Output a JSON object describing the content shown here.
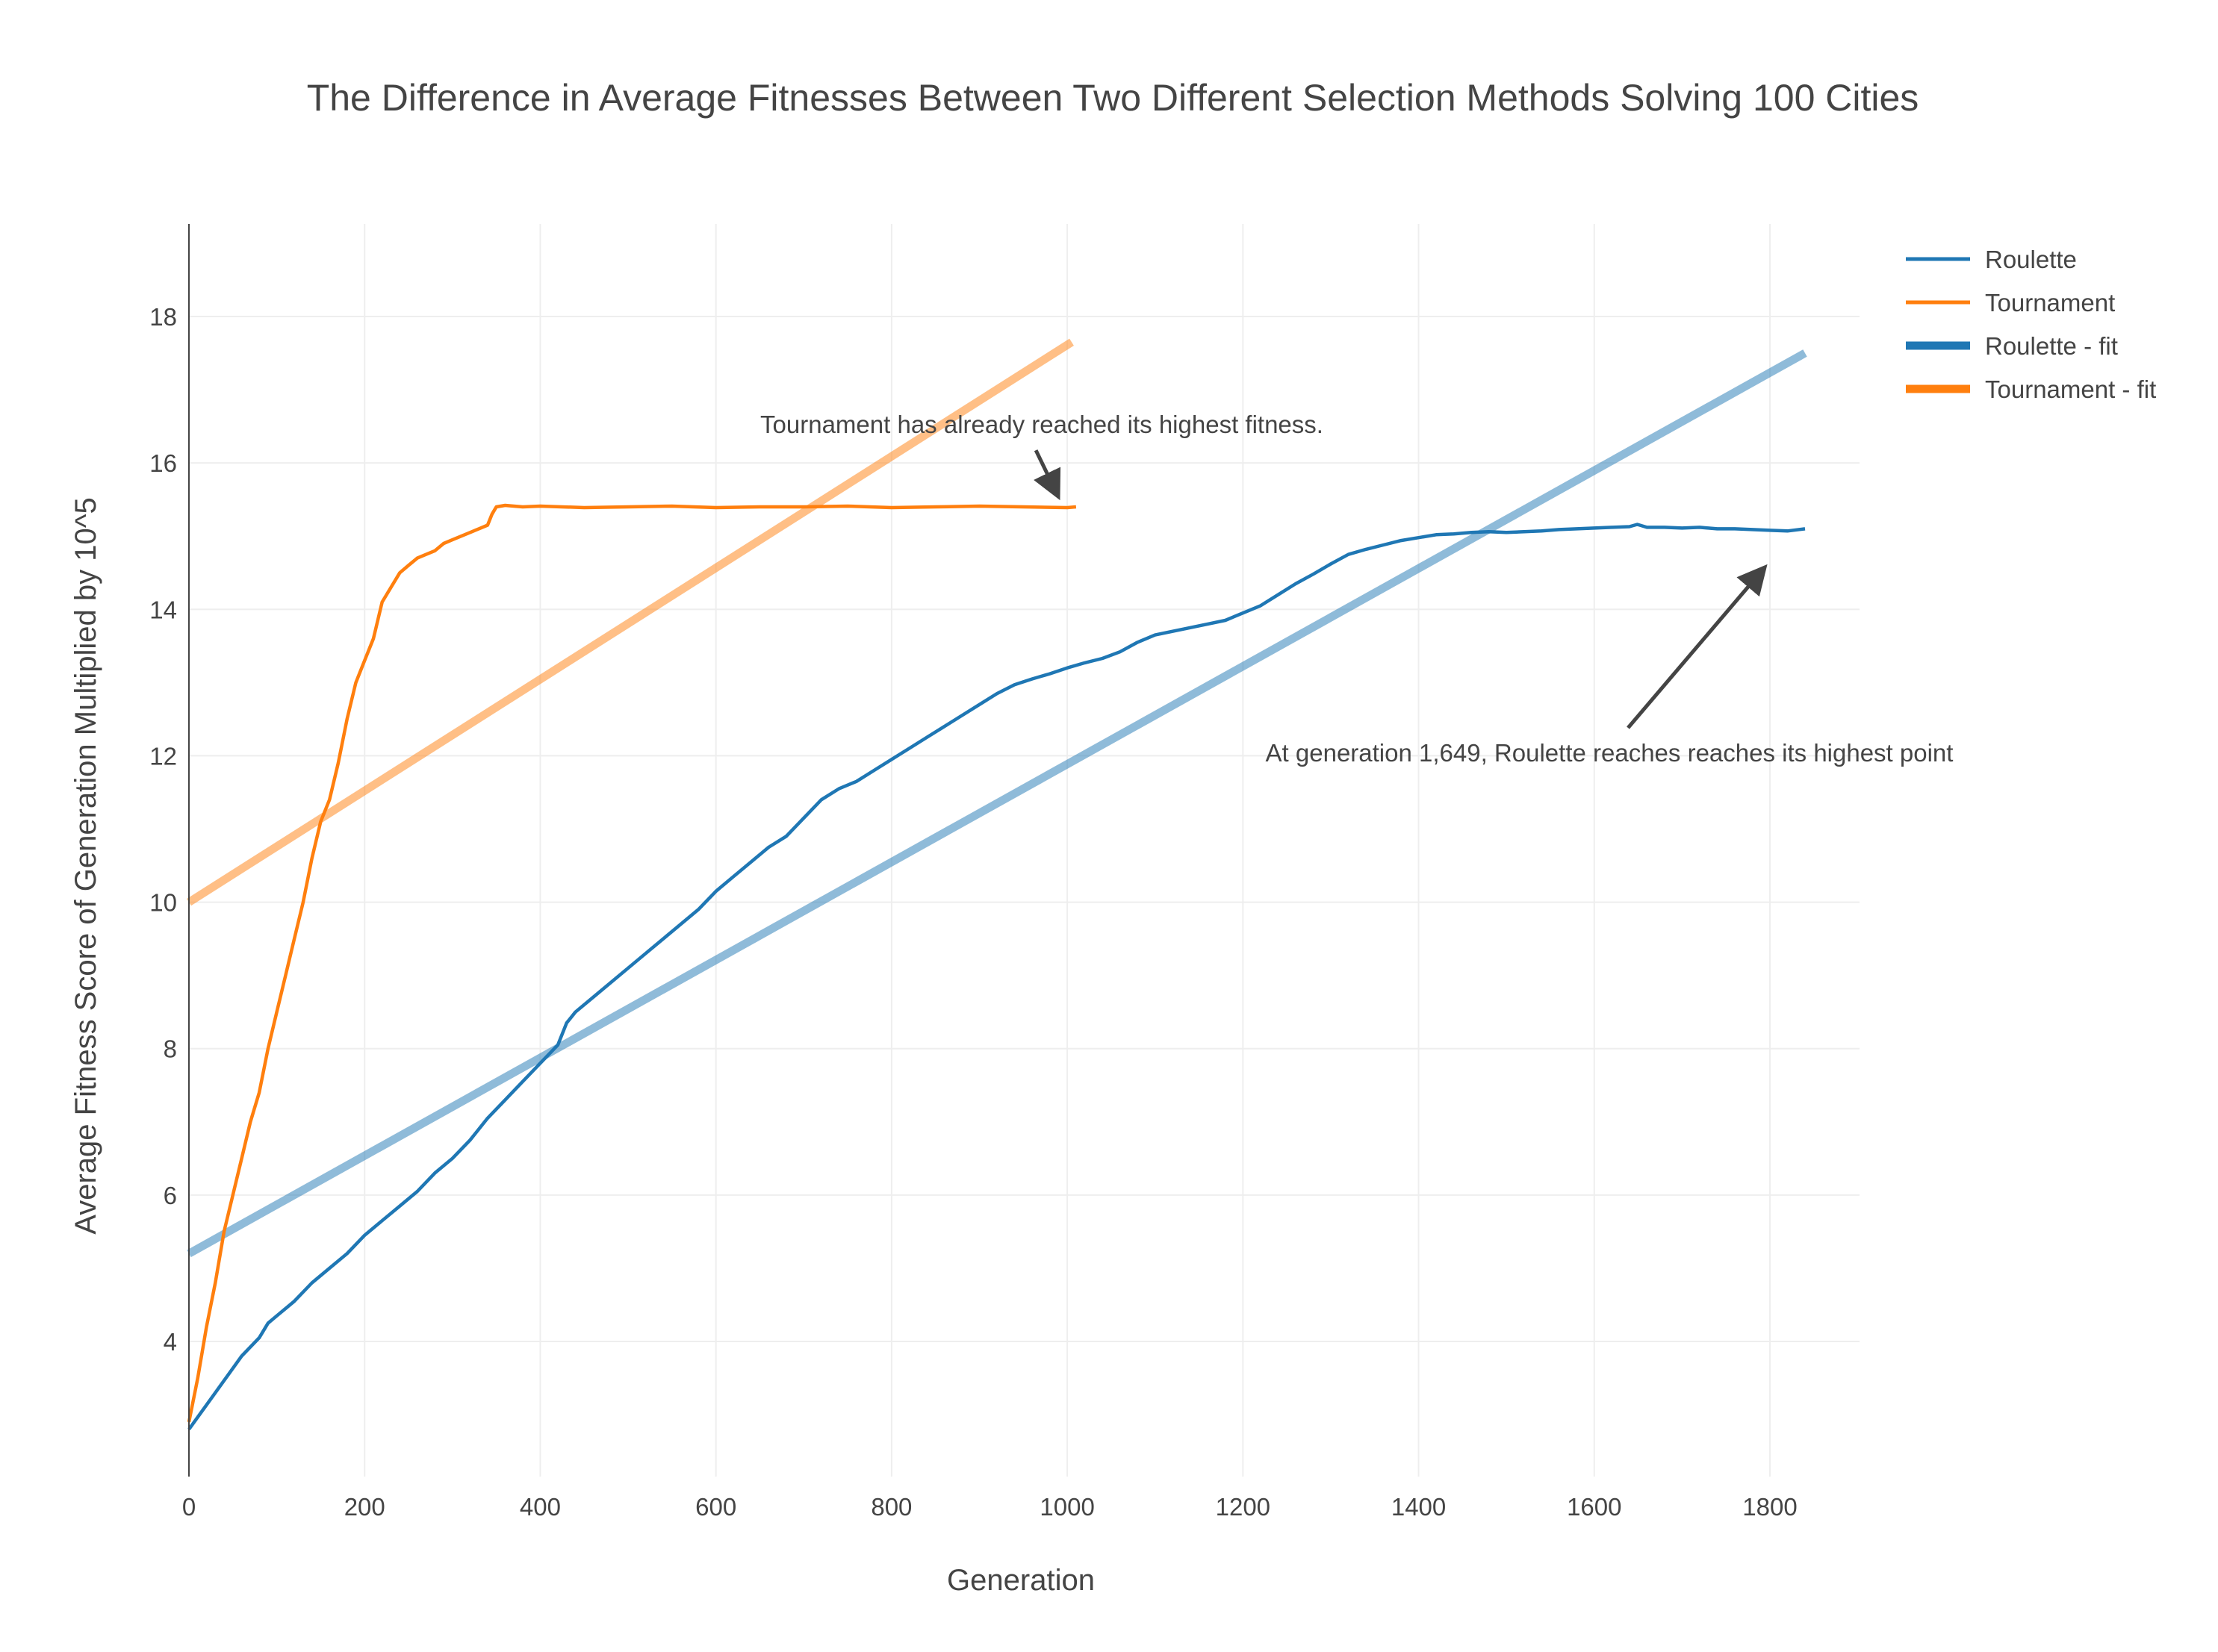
{
  "chart_data": {
    "type": "line",
    "title": "The Difference in Average Fitnesses Between Two Different Selection Methods Solving 100 Cities",
    "xlabel": "Generation",
    "ylabel": "Average Fitness Score of Generation Multiplied by 10^5",
    "xlim": [
      0,
      1900
    ],
    "ylim": [
      2.2,
      19.3
    ],
    "xticks": [
      0,
      200,
      400,
      600,
      800,
      1000,
      1200,
      1400,
      1600,
      1800
    ],
    "yticks": [
      4,
      6,
      8,
      10,
      12,
      14,
      16,
      18
    ],
    "grid": true,
    "legend_position": "top-right",
    "series": [
      {
        "name": "Roulette",
        "color": "#1f77b4",
        "style": "line",
        "x": [
          0,
          30,
          60,
          80,
          90,
          100,
          120,
          140,
          160,
          180,
          200,
          220,
          240,
          260,
          280,
          300,
          320,
          340,
          360,
          380,
          400,
          420,
          430,
          440,
          460,
          480,
          500,
          520,
          540,
          560,
          580,
          600,
          620,
          640,
          660,
          680,
          700,
          720,
          740,
          760,
          780,
          800,
          820,
          840,
          860,
          880,
          900,
          920,
          940,
          960,
          980,
          1000,
          1020,
          1040,
          1060,
          1080,
          1100,
          1120,
          1140,
          1160,
          1180,
          1200,
          1220,
          1240,
          1260,
          1280,
          1300,
          1320,
          1340,
          1360,
          1380,
          1400,
          1420,
          1440,
          1460,
          1480,
          1500,
          1520,
          1540,
          1560,
          1580,
          1600,
          1620,
          1640,
          1649,
          1660,
          1680,
          1700,
          1720,
          1740,
          1760,
          1780,
          1800,
          1820,
          1840
        ],
        "y": [
          2.8,
          3.3,
          3.8,
          4.05,
          4.25,
          4.35,
          4.55,
          4.8,
          5.0,
          5.2,
          5.45,
          5.65,
          5.85,
          6.05,
          6.3,
          6.5,
          6.75,
          7.05,
          7.3,
          7.55,
          7.8,
          8.05,
          8.35,
          8.5,
          8.7,
          8.9,
          9.1,
          9.3,
          9.5,
          9.7,
          9.9,
          10.15,
          10.35,
          10.55,
          10.75,
          10.9,
          11.15,
          11.4,
          11.55,
          11.65,
          11.8,
          11.95,
          12.1,
          12.25,
          12.4,
          12.55,
          12.7,
          12.85,
          12.97,
          13.05,
          13.12,
          13.2,
          13.27,
          13.33,
          13.42,
          13.55,
          13.65,
          13.7,
          13.75,
          13.8,
          13.85,
          13.95,
          14.05,
          14.2,
          14.35,
          14.48,
          14.62,
          14.75,
          14.82,
          14.88,
          14.94,
          14.98,
          15.02,
          15.03,
          15.05,
          15.06,
          15.05,
          15.06,
          15.07,
          15.09,
          15.1,
          15.11,
          15.12,
          15.13,
          15.16,
          15.12,
          15.12,
          15.11,
          15.12,
          15.1,
          15.1,
          15.09,
          15.08,
          15.07,
          15.1
        ]
      },
      {
        "name": "Tournament",
        "color": "#ff7f0e",
        "style": "line",
        "x": [
          0,
          10,
          20,
          30,
          40,
          50,
          60,
          70,
          80,
          90,
          100,
          110,
          120,
          130,
          140,
          150,
          160,
          170,
          180,
          190,
          200,
          210,
          220,
          230,
          240,
          250,
          260,
          270,
          280,
          290,
          300,
          310,
          320,
          330,
          340,
          345,
          350,
          360,
          380,
          400,
          450,
          500,
          550,
          600,
          650,
          700,
          750,
          800,
          850,
          900,
          950,
          1000,
          1010
        ],
        "y": [
          2.9,
          3.5,
          4.2,
          4.8,
          5.5,
          6.0,
          6.5,
          7.0,
          7.4,
          8.0,
          8.5,
          9.0,
          9.5,
          10.0,
          10.6,
          11.1,
          11.4,
          11.9,
          12.5,
          13.0,
          13.3,
          13.6,
          14.1,
          14.3,
          14.5,
          14.6,
          14.7,
          14.75,
          14.8,
          14.9,
          14.95,
          15.0,
          15.05,
          15.1,
          15.15,
          15.3,
          15.4,
          15.42,
          15.4,
          15.41,
          15.39,
          15.4,
          15.41,
          15.39,
          15.4,
          15.4,
          15.41,
          15.39,
          15.4,
          15.41,
          15.4,
          15.39,
          15.4
        ]
      },
      {
        "name": "Roulette - fit",
        "color": "#1f77b4",
        "style": "fit",
        "x": [
          0,
          1840
        ],
        "y": [
          5.2,
          17.5
        ]
      },
      {
        "name": "Tournament - fit",
        "color": "#ff7f0e",
        "style": "fit",
        "x": [
          0,
          1005
        ],
        "y": [
          10.0,
          17.65
        ]
      }
    ],
    "annotations": [
      {
        "text": "Tournament has already reached its highest fitness.",
        "x": 1000,
        "y": 15.5
      },
      {
        "text": "At generation 1,649, Roulette reaches reaches its highest point",
        "x": 1795,
        "y": 14.6
      }
    ]
  }
}
